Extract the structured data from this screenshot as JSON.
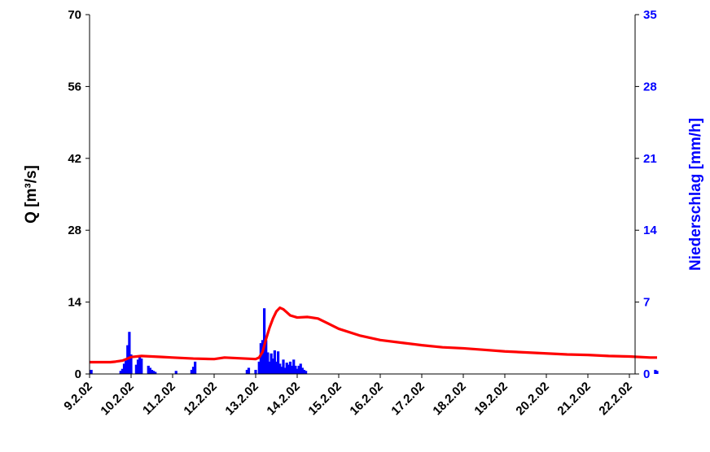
{
  "chart_data": {
    "type": "bar+line",
    "x_axis": {
      "tick_labels": [
        "9.2.02",
        "10.2.02",
        "11.2.02",
        "12.2.02",
        "13.2.02",
        "14.2.02",
        "15.2.02",
        "16.2.02",
        "17.2.02",
        "18.2.02",
        "19.2.02",
        "20.2.02",
        "21.2.02",
        "22.2.02"
      ],
      "range": [
        "2002-02-09",
        "2002-02-22"
      ]
    },
    "y_left": {
      "label": "Q [m³/s]",
      "ticks": [
        "0",
        "14",
        "28",
        "42",
        "56",
        "70"
      ],
      "range": [
        0,
        70
      ],
      "color": "#000000"
    },
    "y_right": {
      "label": "Niederschlag [mm/h]",
      "ticks": [
        "0",
        "7",
        "14",
        "21",
        "28",
        "35"
      ],
      "range": [
        0,
        35
      ],
      "color": "#0000ff"
    },
    "grid": false,
    "series": [
      {
        "type": "line",
        "axis": "left",
        "color": "#ff0000",
        "points": [
          [
            "2002-02-09 00:00",
            2.3
          ],
          [
            "2002-02-09 12:00",
            2.3
          ],
          [
            "2002-02-09 15:00",
            2.4
          ],
          [
            "2002-02-09 19:00",
            2.6
          ],
          [
            "2002-02-09 22:00",
            3.0
          ],
          [
            "2002-02-10 00:00",
            3.3
          ],
          [
            "2002-02-10 06:00",
            3.5
          ],
          [
            "2002-02-10 12:00",
            3.4
          ],
          [
            "2002-02-10 18:00",
            3.3
          ],
          [
            "2002-02-11 00:00",
            3.2
          ],
          [
            "2002-02-11 12:00",
            3.0
          ],
          [
            "2002-02-12 00:00",
            2.9
          ],
          [
            "2002-02-12 06:00",
            3.2
          ],
          [
            "2002-02-12 12:00",
            3.1
          ],
          [
            "2002-02-12 18:00",
            3.0
          ],
          [
            "2002-02-13 00:00",
            2.9
          ],
          [
            "2002-02-13 02:00",
            3.2
          ],
          [
            "2002-02-13 04:00",
            4.3
          ],
          [
            "2002-02-13 06:00",
            6.8
          ],
          [
            "2002-02-13 08:00",
            9.0
          ],
          [
            "2002-02-13 10:00",
            10.8
          ],
          [
            "2002-02-13 12:00",
            12.2
          ],
          [
            "2002-02-13 14:00",
            12.9
          ],
          [
            "2002-02-13 16:00",
            12.6
          ],
          [
            "2002-02-13 18:00",
            12.0
          ],
          [
            "2002-02-13 20:00",
            11.4
          ],
          [
            "2002-02-14 00:00",
            11.0
          ],
          [
            "2002-02-14 06:00",
            11.1
          ],
          [
            "2002-02-14 12:00",
            10.8
          ],
          [
            "2002-02-14 18:00",
            9.8
          ],
          [
            "2002-02-15 00:00",
            8.8
          ],
          [
            "2002-02-15 12:00",
            7.5
          ],
          [
            "2002-02-16 00:00",
            6.6
          ],
          [
            "2002-02-16 12:00",
            6.1
          ],
          [
            "2002-02-17 00:00",
            5.6
          ],
          [
            "2002-02-17 12:00",
            5.2
          ],
          [
            "2002-02-18 00:00",
            5.0
          ],
          [
            "2002-02-18 12:00",
            4.7
          ],
          [
            "2002-02-19 00:00",
            4.4
          ],
          [
            "2002-02-19 12:00",
            4.2
          ],
          [
            "2002-02-20 00:00",
            4.0
          ],
          [
            "2002-02-20 12:00",
            3.8
          ],
          [
            "2002-02-21 00:00",
            3.7
          ],
          [
            "2002-02-21 12:00",
            3.5
          ],
          [
            "2002-02-22 00:00",
            3.4
          ],
          [
            "2002-02-22 12:00",
            3.2
          ],
          [
            "2002-02-22 16:00",
            3.2
          ]
        ]
      },
      {
        "type": "bar",
        "axis": "right",
        "color": "#0000ff",
        "points": [
          [
            "2002-02-09 01:00",
            0.4
          ],
          [
            "2002-02-09 18:00",
            0.3
          ],
          [
            "2002-02-09 19:00",
            0.5
          ],
          [
            "2002-02-09 20:00",
            1.0
          ],
          [
            "2002-02-09 21:00",
            1.3
          ],
          [
            "2002-02-09 22:00",
            2.8
          ],
          [
            "2002-02-09 23:00",
            4.1
          ],
          [
            "2002-02-10 00:00",
            1.9
          ],
          [
            "2002-02-10 03:00",
            0.9
          ],
          [
            "2002-02-10 04:00",
            1.4
          ],
          [
            "2002-02-10 05:00",
            1.8
          ],
          [
            "2002-02-10 06:00",
            1.5
          ],
          [
            "2002-02-10 10:00",
            0.8
          ],
          [
            "2002-02-10 11:00",
            0.6
          ],
          [
            "2002-02-10 12:00",
            0.4
          ],
          [
            "2002-02-10 13:00",
            0.3
          ],
          [
            "2002-02-10 14:00",
            0.2
          ],
          [
            "2002-02-11 02:00",
            0.3
          ],
          [
            "2002-02-11 11:00",
            0.4
          ],
          [
            "2002-02-11 12:00",
            0.7
          ],
          [
            "2002-02-11 13:00",
            1.2
          ],
          [
            "2002-02-12 19:00",
            0.4
          ],
          [
            "2002-02-12 20:00",
            0.6
          ],
          [
            "2002-02-13 00:00",
            0.4
          ],
          [
            "2002-02-13 02:00",
            1.2
          ],
          [
            "2002-02-13 03:00",
            3.0
          ],
          [
            "2002-02-13 04:00",
            3.3
          ],
          [
            "2002-02-13 05:00",
            6.4
          ],
          [
            "2002-02-13 06:00",
            3.3
          ],
          [
            "2002-02-13 07:00",
            2.1
          ],
          [
            "2002-02-13 08:00",
            1.2
          ],
          [
            "2002-02-13 09:00",
            2.0
          ],
          [
            "2002-02-13 10:00",
            1.5
          ],
          [
            "2002-02-13 11:00",
            2.3
          ],
          [
            "2002-02-13 12:00",
            1.2
          ],
          [
            "2002-02-13 13:00",
            2.2
          ],
          [
            "2002-02-13 14:00",
            1.0
          ],
          [
            "2002-02-13 15:00",
            0.7
          ],
          [
            "2002-02-13 16:00",
            1.4
          ],
          [
            "2002-02-13 17:00",
            0.6
          ],
          [
            "2002-02-13 18:00",
            1.1
          ],
          [
            "2002-02-13 19:00",
            0.9
          ],
          [
            "2002-02-13 20:00",
            1.2
          ],
          [
            "2002-02-13 21:00",
            0.8
          ],
          [
            "2002-02-13 22:00",
            1.4
          ],
          [
            "2002-02-13 23:00",
            0.8
          ],
          [
            "2002-02-14 00:00",
            0.5
          ],
          [
            "2002-02-14 01:00",
            0.8
          ],
          [
            "2002-02-14 02:00",
            1.0
          ],
          [
            "2002-02-14 03:00",
            0.6
          ],
          [
            "2002-02-14 04:00",
            0.4
          ],
          [
            "2002-02-14 05:00",
            0.3
          ],
          [
            "2002-02-22 15:00",
            0.4
          ],
          [
            "2002-02-22 16:00",
            0.3
          ]
        ]
      }
    ]
  }
}
